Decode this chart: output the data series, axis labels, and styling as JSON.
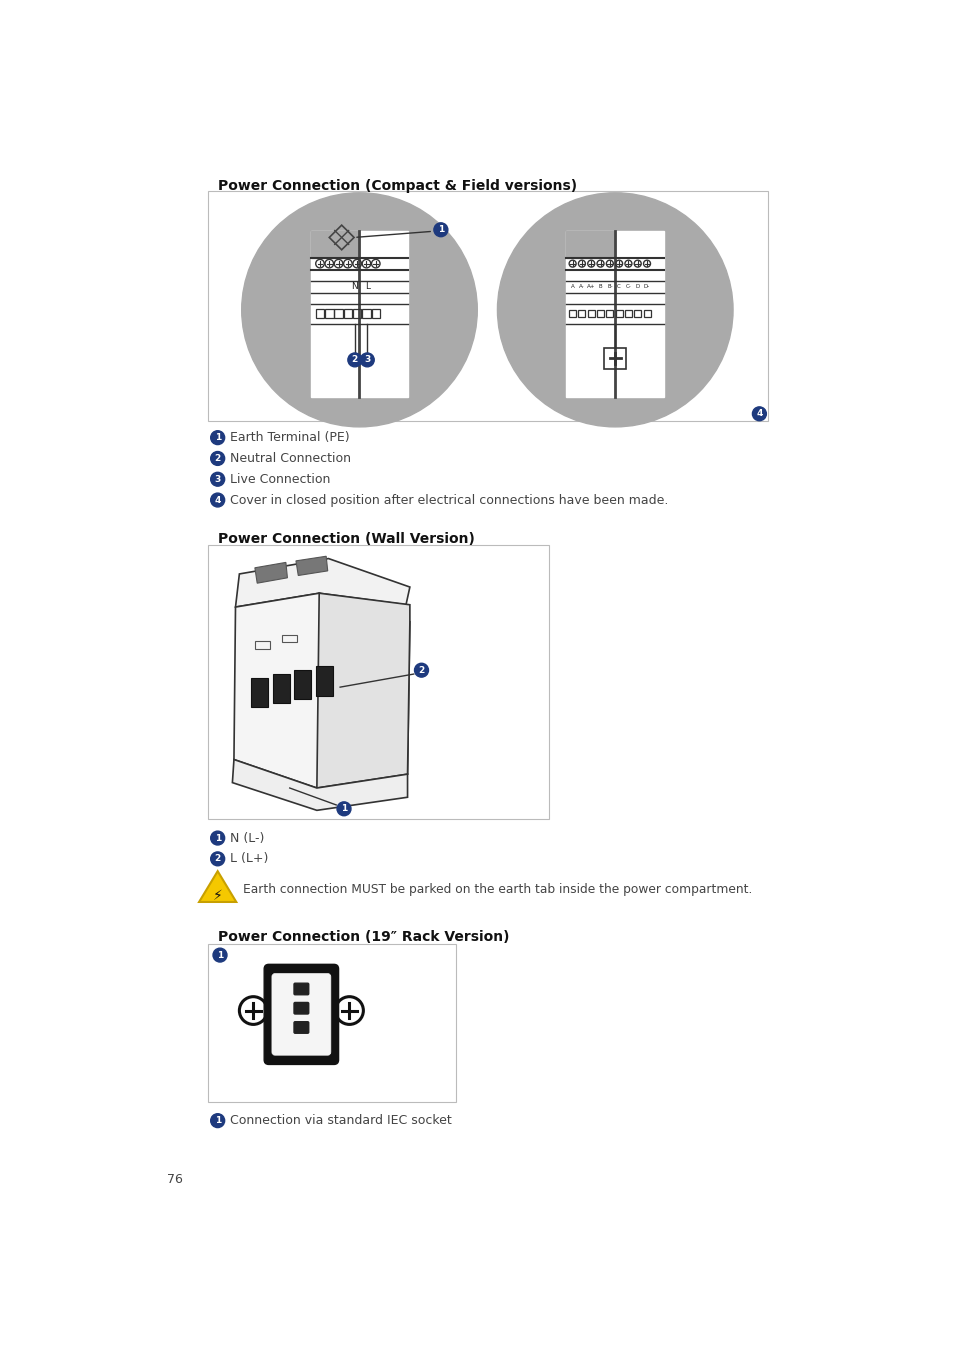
{
  "page_bg": "#ffffff",
  "title1": "Power Connection (Compact & Field versions)",
  "title2": "Power Connection (Wall Version)",
  "title3": "Power Connection (19″ Rack Version)",
  "label1_1": "Earth Terminal (PE)",
  "label1_2": "Neutral Connection",
  "label1_3": "Live Connection",
  "label1_4": "Cover in closed position after electrical connections have been made.",
  "label2_1": "N (L-)",
  "label2_2": "L (L+)",
  "warning_text": "Earth connection MUST be parked on the earth tab inside the power compartment.",
  "label3_1": "Connection via standard IEC socket",
  "page_num": "76",
  "blue": "#1e3a7e",
  "gray": "#888888",
  "lightgray": "#cccccc",
  "darkgray": "#555555",
  "text_color": "#444444",
  "box_border": "#bbbbbb"
}
